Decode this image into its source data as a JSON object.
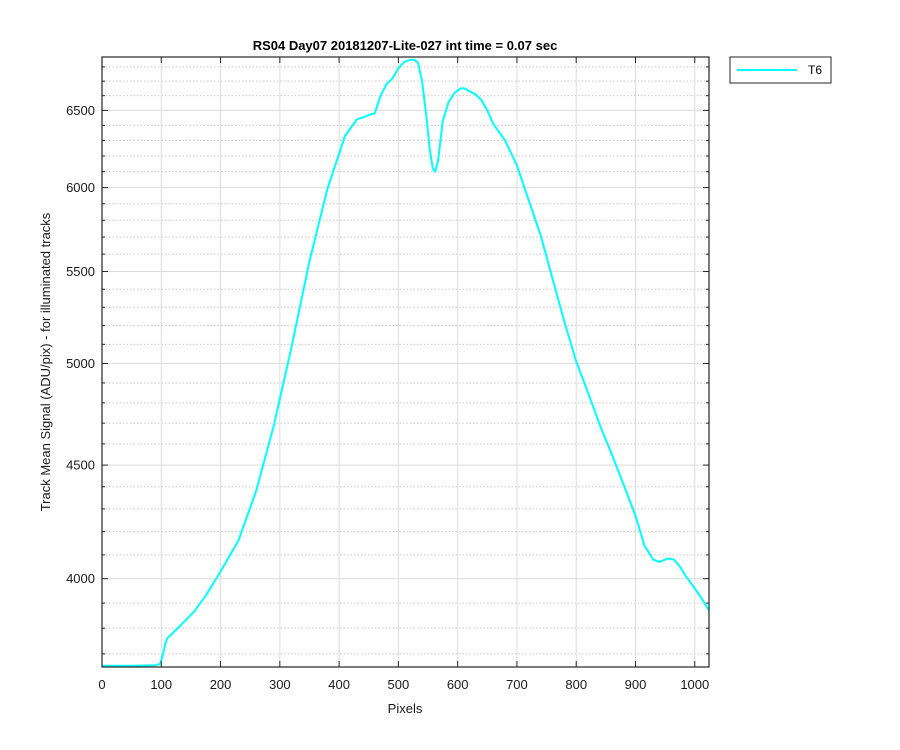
{
  "chart_data": {
    "type": "line",
    "title": "RS04 Day07 20181207-Lite-027 int time = 0.07 sec",
    "xlabel": "Pixels",
    "ylabel": "Track Mean Signal (ADU/pix) - for illuminated tracks",
    "xlim": [
      0,
      1024
    ],
    "ylim": [
      3650,
      6870
    ],
    "y_scale": "log",
    "grid": true,
    "minor_grid": true,
    "legend_position": "outside-top-right",
    "x_ticks": [
      0,
      100,
      200,
      300,
      400,
      500,
      600,
      700,
      800,
      900,
      1000
    ],
    "x_tick_labels": [
      "0",
      "100",
      "200",
      "300",
      "400",
      "500",
      "600",
      "700",
      "800",
      "900",
      "1000"
    ],
    "y_ticks": [
      4000,
      4500,
      5000,
      5500,
      6000,
      6500
    ],
    "y_tick_labels": [
      "4000",
      "4500",
      "5000",
      "5500",
      "6000",
      "6500"
    ],
    "y_minor_ticks": [
      3700,
      3800,
      3900,
      4100,
      4200,
      4300,
      4400,
      4600,
      4700,
      4800,
      4900,
      5100,
      5200,
      5300,
      5400,
      5600,
      5700,
      5800,
      5900,
      6100,
      6200,
      6300,
      6400,
      6600,
      6700,
      6800
    ],
    "series": [
      {
        "name": "T6",
        "color": "#00ffff",
        "x": [
          0,
          50,
          90,
          98,
          103,
          107,
          110,
          130,
          155,
          175,
          200,
          230,
          260,
          290,
          320,
          350,
          380,
          410,
          430,
          445,
          450,
          460,
          470,
          480,
          490,
          500,
          510,
          520,
          527,
          533,
          540,
          547,
          553,
          558,
          562,
          567,
          575,
          585,
          595,
          605,
          612,
          620,
          630,
          640,
          650,
          660,
          680,
          700,
          720,
          740,
          760,
          780,
          800,
          820,
          840,
          860,
          880,
          900,
          915,
          930,
          940,
          945,
          955,
          965,
          975,
          985,
          1000,
          1010,
          1024
        ],
        "y": [
          3655,
          3655,
          3657,
          3662,
          3700,
          3740,
          3760,
          3805,
          3865,
          3930,
          4030,
          4160,
          4380,
          4690,
          5090,
          5560,
          5990,
          6330,
          6440,
          6460,
          6470,
          6480,
          6600,
          6680,
          6720,
          6790,
          6835,
          6850,
          6850,
          6830,
          6700,
          6470,
          6240,
          6120,
          6100,
          6170,
          6430,
          6560,
          6620,
          6650,
          6650,
          6630,
          6610,
          6570,
          6500,
          6410,
          6300,
          6140,
          5920,
          5710,
          5460,
          5220,
          5010,
          4850,
          4690,
          4550,
          4410,
          4270,
          4140,
          4080,
          4070,
          4075,
          4085,
          4080,
          4050,
          4010,
          3960,
          3925,
          3870
        ]
      }
    ]
  }
}
